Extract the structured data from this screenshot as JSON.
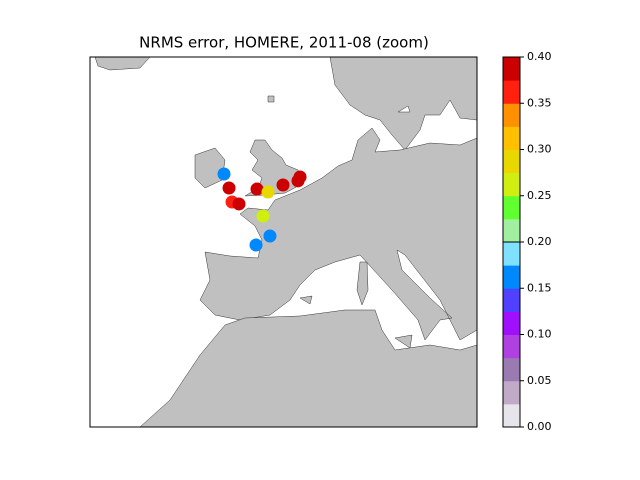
{
  "chart_data": {
    "type": "scatter",
    "title": "NRMS error, HOMERE, 2011-08 (zoom)",
    "x": [
      -6.15,
      -5.63,
      -5.32,
      -4.6,
      -2.74,
      -1.6,
      -0.05,
      1.71,
      1.5,
      -2.12,
      -1.4,
      -2.84
    ],
    "y": [
      53.88,
      52.67,
      51.46,
      51.29,
      52.58,
      52.32,
      52.93,
      53.62,
      53.29,
      50.25,
      48.52,
      47.74
    ],
    "values": [
      0.17,
      0.39,
      0.37,
      0.39,
      0.39,
      0.29,
      0.39,
      0.39,
      0.38,
      0.26,
      0.17,
      0.17
    ],
    "xlim": [
      -20,
      20
    ],
    "ylim": [
      32,
      64
    ],
    "clim": [
      0,
      0.4
    ],
    "colorscale": [
      "#e8e4ec",
      "#c0aac8",
      "#9a7ab0",
      "#b040e0",
      "#a010ff",
      "#5040ff",
      "#0088ff",
      "#80e0ff",
      "#a0f0a0",
      "#60ff30",
      "#d0ee10",
      "#e8d800",
      "#ffc000",
      "#ff9000",
      "#ff2010",
      "#cc0000"
    ],
    "cticks": [
      {
        "value": 0,
        "label": "0.00"
      },
      {
        "value": 0.05,
        "label": "0.05"
      },
      {
        "value": 0.1,
        "label": "0.10"
      },
      {
        "value": 0.15,
        "label": "0.15"
      },
      {
        "value": 0.2,
        "label": "0.20"
      },
      {
        "value": 0.25,
        "label": "0.25"
      },
      {
        "value": 0.3,
        "label": "0.30"
      },
      {
        "value": 0.35,
        "label": "0.35"
      },
      {
        "value": 0.4,
        "label": "0.40"
      }
    ]
  }
}
